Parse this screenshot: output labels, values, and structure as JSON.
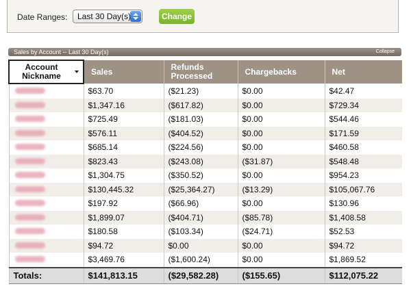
{
  "filters": {
    "date_range_label": "Date Ranges:",
    "date_range_value": "Last 30 Day(s)",
    "change_button": "Change"
  },
  "panel": {
    "title": "Sales by Account -- Last 30 Day(s)",
    "collapse": "Collapse"
  },
  "columns": [
    "Account Nickname",
    "Sales",
    "Refunds Processed",
    "Chargebacks",
    "Net"
  ],
  "rows": [
    {
      "sales": "$63.70",
      "refunds": "($21.23)",
      "chargebacks": "$0.00",
      "net": "$42.47"
    },
    {
      "sales": "$1,347.16",
      "refunds": "($617.82)",
      "chargebacks": "$0.00",
      "net": "$729.34"
    },
    {
      "sales": "$725.49",
      "refunds": "($181.03)",
      "chargebacks": "$0.00",
      "net": "$544.46"
    },
    {
      "sales": "$576.11",
      "refunds": "($404.52)",
      "chargebacks": "$0.00",
      "net": "$171.59"
    },
    {
      "sales": "$685.14",
      "refunds": "($224.56)",
      "chargebacks": "$0.00",
      "net": "$460.58"
    },
    {
      "sales": "$823.43",
      "refunds": "($243.08)",
      "chargebacks": "($31.87)",
      "net": "$548.48"
    },
    {
      "sales": "$1,304.75",
      "refunds": "($350.52)",
      "chargebacks": "$0.00",
      "net": "$954.23"
    },
    {
      "sales": "$130,445.32",
      "refunds": "($25,364.27)",
      "chargebacks": "($13.29)",
      "net": "$105,067.76"
    },
    {
      "sales": "$197.92",
      "refunds": "($66.96)",
      "chargebacks": "$0.00",
      "net": "$130.96"
    },
    {
      "sales": "$1,899.07",
      "refunds": "($404.71)",
      "chargebacks": "($85.78)",
      "net": "$1,408.58"
    },
    {
      "sales": "$180.58",
      "refunds": "($103.34)",
      "chargebacks": "($24.71)",
      "net": "$52.53"
    },
    {
      "sales": "$94.72",
      "refunds": "$0.00",
      "chargebacks": "$0.00",
      "net": "$94.72"
    },
    {
      "sales": "$3,469.76",
      "refunds": "($1,600.24)",
      "chargebacks": "$0.00",
      "net": "$1,869.52"
    }
  ],
  "totals": {
    "label": "Totals:",
    "sales": "$141,813.15",
    "refunds": "($29,582.28)",
    "chargebacks": "($155.65)",
    "net": "$112,075.22"
  }
}
